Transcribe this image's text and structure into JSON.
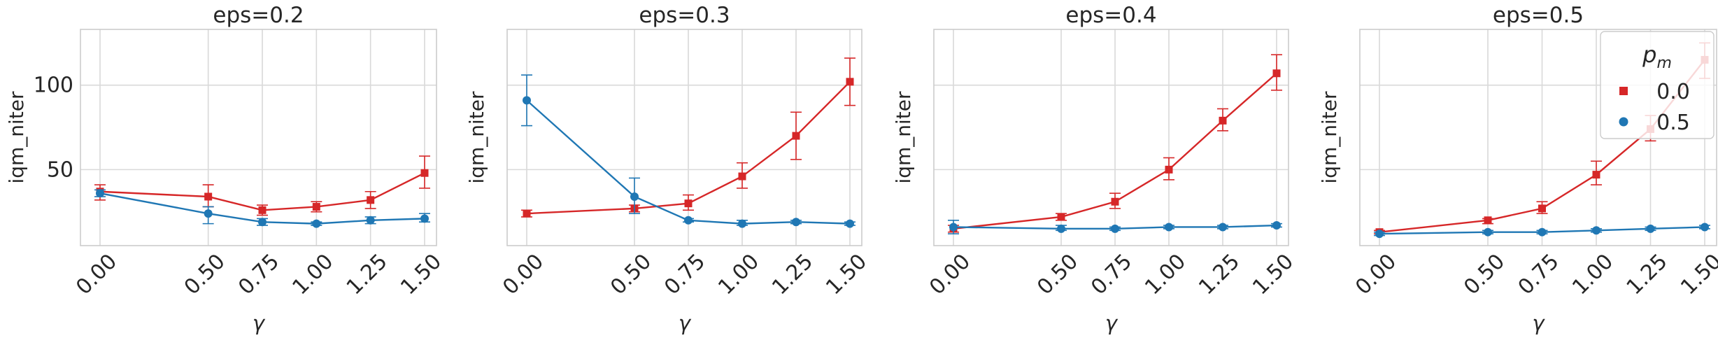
{
  "chart_data": [
    {
      "type": "line",
      "title": "eps=0.2",
      "xlabel": "γ",
      "ylabel": "iqm_niter",
      "x": [
        0.0,
        0.5,
        0.75,
        1.0,
        1.25,
        1.5
      ],
      "xticks": [
        "0.00",
        "0.50",
        "0.75",
        "1.00",
        "1.25",
        "1.50"
      ],
      "yticks": [
        50,
        100
      ],
      "ytick_labels": [
        "50",
        "100"
      ],
      "ylim": [
        5,
        133
      ],
      "grid": true,
      "series": [
        {
          "name": "0.0",
          "color": "#d62728",
          "marker": "square",
          "values": [
            37,
            34,
            26,
            28,
            32,
            48
          ],
          "err_low": [
            32,
            28,
            23,
            25,
            27,
            39
          ],
          "err_high": [
            41,
            41,
            29,
            31,
            37,
            58
          ]
        },
        {
          "name": "0.5",
          "color": "#1f77b4",
          "marker": "circle",
          "values": [
            36,
            24,
            19,
            18,
            20,
            21
          ],
          "err_low": [
            34,
            18,
            17,
            17,
            18,
            19
          ],
          "err_high": [
            38,
            28,
            21,
            19,
            22,
            24
          ]
        }
      ]
    },
    {
      "type": "line",
      "title": "eps=0.3",
      "xlabel": "γ",
      "ylabel": "iqm_niter",
      "x": [
        0.0,
        0.5,
        0.75,
        1.0,
        1.25,
        1.5
      ],
      "xticks": [
        "0.00",
        "0.50",
        "0.75",
        "1.00",
        "1.25",
        "1.50"
      ],
      "yticks": [
        50,
        100
      ],
      "ytick_labels": [
        "",
        ""
      ],
      "ylim": [
        5,
        133
      ],
      "grid": true,
      "series": [
        {
          "name": "0.0",
          "color": "#d62728",
          "marker": "square",
          "values": [
            24,
            27,
            30,
            46,
            70,
            102
          ],
          "err_low": [
            22,
            25,
            26,
            39,
            56,
            88
          ],
          "err_high": [
            26,
            29,
            35,
            54,
            84,
            116
          ]
        },
        {
          "name": "0.5",
          "color": "#1f77b4",
          "marker": "circle",
          "values": [
            91,
            34,
            20,
            18,
            19,
            18
          ],
          "err_low": [
            76,
            24,
            19,
            17,
            18,
            17
          ],
          "err_high": [
            106,
            45,
            21,
            20,
            20,
            19
          ]
        }
      ]
    },
    {
      "type": "line",
      "title": "eps=0.4",
      "xlabel": "γ",
      "ylabel": "iqm_niter",
      "x": [
        0.0,
        0.5,
        0.75,
        1.0,
        1.25,
        1.5
      ],
      "xticks": [
        "0.00",
        "0.50",
        "0.75",
        "1.00",
        "1.25",
        "1.50"
      ],
      "yticks": [
        50,
        100
      ],
      "ytick_labels": [
        "",
        ""
      ],
      "ylim": [
        5,
        133
      ],
      "grid": true,
      "series": [
        {
          "name": "0.0",
          "color": "#d62728",
          "marker": "square",
          "values": [
            15,
            22,
            31,
            50,
            79,
            107
          ],
          "err_low": [
            13,
            20,
            27,
            44,
            73,
            97
          ],
          "err_high": [
            17,
            24,
            36,
            57,
            86,
            118
          ]
        },
        {
          "name": "0.5",
          "color": "#1f77b4",
          "marker": "circle",
          "values": [
            16,
            15,
            15,
            16,
            16,
            17
          ],
          "err_low": [
            12,
            14,
            14,
            15,
            15,
            16
          ],
          "err_high": [
            20,
            17,
            16,
            17,
            17,
            18
          ]
        }
      ]
    },
    {
      "type": "line",
      "title": "eps=0.5",
      "xlabel": "γ",
      "ylabel": "iqm_niter",
      "x": [
        0.0,
        0.5,
        0.75,
        1.0,
        1.25,
        1.5
      ],
      "xticks": [
        "0.00",
        "0.50",
        "0.75",
        "1.00",
        "1.25",
        "1.50"
      ],
      "yticks": [
        50,
        100
      ],
      "ytick_labels": [
        "",
        ""
      ],
      "ylim": [
        5,
        133
      ],
      "grid": true,
      "legend": {
        "title": "p_m",
        "title_base": "p",
        "title_sub": "m",
        "position": "upper right"
      },
      "series": [
        {
          "name": "0.0",
          "color": "#d62728",
          "marker": "square",
          "values": [
            13,
            20,
            27,
            47,
            74,
            115
          ],
          "err_low": [
            12,
            18,
            24,
            41,
            67,
            104
          ],
          "err_high": [
            14,
            21,
            31,
            55,
            82,
            125
          ]
        },
        {
          "name": "0.5",
          "color": "#1f77b4",
          "marker": "circle",
          "values": [
            12,
            13,
            13,
            14,
            15,
            16
          ],
          "err_low": [
            11,
            12,
            12,
            13,
            14,
            15
          ],
          "err_high": [
            13,
            14,
            14,
            15,
            16,
            17
          ]
        }
      ]
    }
  ]
}
